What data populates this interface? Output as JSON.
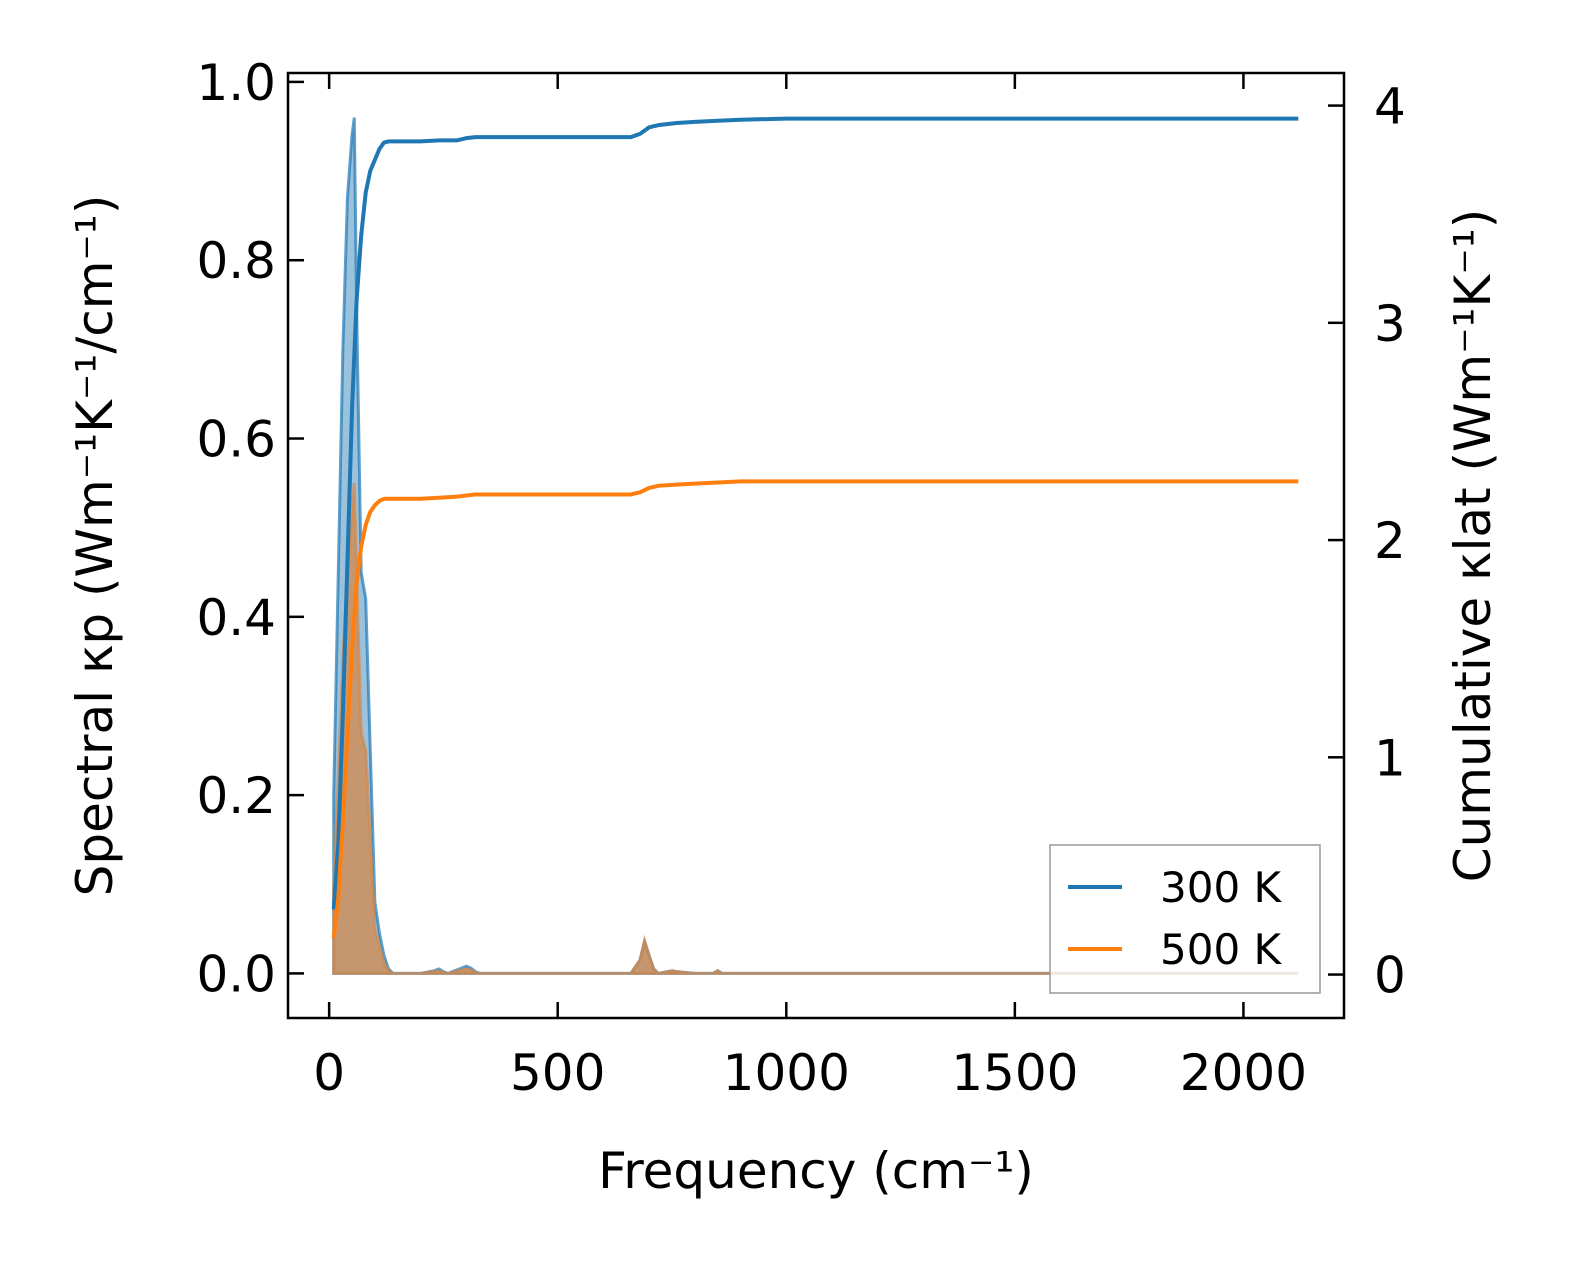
{
  "chart_data": {
    "type": "line",
    "xlabel": "Frequency (cm⁻¹)",
    "ylabel_left": "Spectral κp (Wm⁻¹K⁻¹/cm⁻¹)",
    "ylabel_right": "Cumulative κlat (Wm⁻¹K⁻¹)",
    "xlim": [
      -90,
      2220
    ],
    "ylim_left": [
      -0.05,
      1.01
    ],
    "ylim_right": [
      -0.2,
      4.15
    ],
    "x_ticks": [
      0,
      500,
      1000,
      1500,
      2000
    ],
    "x_tick_labels": [
      "0",
      "500",
      "1000",
      "1500",
      "2000"
    ],
    "y_left_ticks": [
      0.0,
      0.2,
      0.4,
      0.6,
      0.8,
      1.0
    ],
    "y_left_tick_labels": [
      "0.0",
      "0.2",
      "0.4",
      "0.6",
      "0.8",
      "1.0"
    ],
    "y_right_ticks": [
      0,
      1,
      2,
      3,
      4
    ],
    "y_right_tick_labels": [
      "0",
      "1",
      "2",
      "3",
      "4"
    ],
    "legend": {
      "placement": "lower-right",
      "entries": [
        "300 K",
        "500 K"
      ]
    },
    "colors": {
      "300 K": "#1f77b4",
      "500 K": "#ff7f0e",
      "spectral_fill_300": "#1f77b4",
      "spectral_fill_500": "#d4884a"
    },
    "series": [
      {
        "name": "300 K",
        "axis": "right",
        "x": [
          10,
          20,
          30,
          40,
          50,
          60,
          70,
          80,
          90,
          100,
          110,
          120,
          130,
          140,
          200,
          240,
          280,
          300,
          320,
          400,
          500,
          600,
          660,
          680,
          700,
          720,
          760,
          800,
          850,
          900,
          1000,
          1500,
          2000,
          2120
        ],
        "y": [
          0.3,
          0.6,
          1.2,
          1.9,
          2.6,
          3.1,
          3.4,
          3.6,
          3.7,
          3.75,
          3.8,
          3.83,
          3.835,
          3.835,
          3.835,
          3.84,
          3.84,
          3.85,
          3.855,
          3.855,
          3.855,
          3.855,
          3.855,
          3.87,
          3.9,
          3.91,
          3.92,
          3.925,
          3.93,
          3.935,
          3.94,
          3.94,
          3.94,
          3.94
        ]
      },
      {
        "name": "500 K",
        "axis": "right",
        "x": [
          10,
          20,
          30,
          40,
          50,
          60,
          70,
          80,
          90,
          100,
          110,
          120,
          130,
          140,
          200,
          240,
          280,
          300,
          320,
          400,
          500,
          600,
          660,
          680,
          700,
          720,
          760,
          800,
          850,
          900,
          1000,
          1500,
          2000,
          2120
        ],
        "y": [
          0.17,
          0.35,
          0.7,
          1.1,
          1.5,
          1.8,
          1.97,
          2.07,
          2.13,
          2.16,
          2.18,
          2.19,
          2.19,
          2.19,
          2.19,
          2.195,
          2.2,
          2.205,
          2.21,
          2.21,
          2.21,
          2.21,
          2.21,
          2.22,
          2.24,
          2.25,
          2.255,
          2.26,
          2.265,
          2.27,
          2.27,
          2.27,
          2.27,
          2.27
        ]
      }
    ],
    "spectral_series": [
      {
        "name": "300 K",
        "axis": "left",
        "x": [
          10,
          20,
          30,
          40,
          50,
          55,
          60,
          70,
          80,
          90,
          100,
          110,
          120,
          130,
          140,
          200,
          230,
          240,
          250,
          260,
          290,
          300,
          310,
          320,
          330,
          660,
          680,
          690,
          700,
          710,
          720,
          750,
          760,
          800,
          840,
          850,
          860,
          900,
          1000,
          2120
        ],
        "y": [
          0.2,
          0.45,
          0.7,
          0.87,
          0.94,
          0.96,
          0.75,
          0.45,
          0.42,
          0.25,
          0.08,
          0.045,
          0.02,
          0.005,
          0.0,
          0.0,
          0.003,
          0.005,
          0.002,
          0.0,
          0.006,
          0.008,
          0.006,
          0.002,
          0.0,
          0.0,
          0.015,
          0.035,
          0.02,
          0.005,
          0.0,
          0.003,
          0.002,
          0.0,
          0.0,
          0.003,
          0.0,
          0.0,
          0.0,
          0.0
        ]
      },
      {
        "name": "500 K",
        "axis": "left",
        "x": [
          10,
          20,
          30,
          40,
          50,
          55,
          60,
          70,
          80,
          90,
          100,
          110,
          120,
          130,
          140,
          200,
          230,
          240,
          250,
          260,
          290,
          300,
          310,
          320,
          330,
          660,
          680,
          690,
          700,
          710,
          720,
          750,
          760,
          800,
          840,
          850,
          860,
          900,
          1000,
          2120
        ],
        "y": [
          0.1,
          0.22,
          0.35,
          0.45,
          0.52,
          0.55,
          0.45,
          0.27,
          0.25,
          0.15,
          0.05,
          0.03,
          0.012,
          0.003,
          0.0,
          0.0,
          0.002,
          0.003,
          0.001,
          0.0,
          0.004,
          0.005,
          0.004,
          0.001,
          0.0,
          0.0,
          0.015,
          0.037,
          0.02,
          0.005,
          0.0,
          0.003,
          0.002,
          0.0,
          0.0,
          0.003,
          0.0,
          0.0,
          0.0,
          0.0
        ]
      }
    ]
  }
}
